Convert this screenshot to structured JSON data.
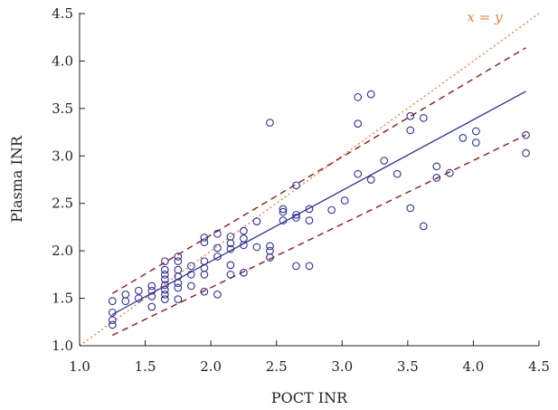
{
  "chart_data": {
    "type": "scatter",
    "title": "",
    "xlabel": "POCT INR",
    "ylabel": "Plasma INR",
    "xlim": [
      1.0,
      4.5
    ],
    "ylim": [
      1.0,
      4.5
    ],
    "xticks": [
      "1.0",
      "1.5",
      "2.0",
      "2.5",
      "3.0",
      "3.5",
      "4.0",
      "4.5"
    ],
    "yticks": [
      "1.0",
      "1.5",
      "2.0",
      "2.5",
      "3.0",
      "3.5",
      "4.0",
      "4.5"
    ],
    "grid": false,
    "annotation": "x = y",
    "colors": {
      "points": "#2e3192",
      "regression": "#2e3192",
      "limits": "#8b1a1a",
      "identity": "#e8823a",
      "axis": "#222222"
    },
    "lines": {
      "identity": {
        "x": [
          1.0,
          4.5
        ],
        "y": [
          1.0,
          4.5
        ]
      },
      "regression": {
        "x": [
          1.25,
          4.4
        ],
        "y": [
          1.33,
          3.68
        ]
      },
      "upper_limit": {
        "x": [
          1.25,
          4.4
        ],
        "y": [
          1.55,
          4.14
        ]
      },
      "lower_limit": {
        "x": [
          1.25,
          4.4
        ],
        "y": [
          1.11,
          3.22
        ]
      }
    },
    "points": [
      [
        1.25,
        1.47
      ],
      [
        1.25,
        1.35
      ],
      [
        1.25,
        1.27
      ],
      [
        1.25,
        1.22
      ],
      [
        1.35,
        1.54
      ],
      [
        1.35,
        1.47
      ],
      [
        1.45,
        1.58
      ],
      [
        1.45,
        1.5
      ],
      [
        1.55,
        1.63
      ],
      [
        1.55,
        1.58
      ],
      [
        1.55,
        1.52
      ],
      [
        1.55,
        1.41
      ],
      [
        1.65,
        1.89
      ],
      [
        1.65,
        1.8
      ],
      [
        1.65,
        1.75
      ],
      [
        1.65,
        1.7
      ],
      [
        1.65,
        1.64
      ],
      [
        1.65,
        1.59
      ],
      [
        1.65,
        1.54
      ],
      [
        1.65,
        1.49
      ],
      [
        1.75,
        1.94
      ],
      [
        1.75,
        1.89
      ],
      [
        1.75,
        1.8
      ],
      [
        1.75,
        1.73
      ],
      [
        1.75,
        1.66
      ],
      [
        1.75,
        1.61
      ],
      [
        1.75,
        1.49
      ],
      [
        1.85,
        1.84
      ],
      [
        1.85,
        1.75
      ],
      [
        1.85,
        1.63
      ],
      [
        1.95,
        2.14
      ],
      [
        1.95,
        2.09
      ],
      [
        1.95,
        1.89
      ],
      [
        1.95,
        1.82
      ],
      [
        1.95,
        1.75
      ],
      [
        1.95,
        1.57
      ],
      [
        2.05,
        2.18
      ],
      [
        2.05,
        2.03
      ],
      [
        2.05,
        1.94
      ],
      [
        2.05,
        1.54
      ],
      [
        2.15,
        2.15
      ],
      [
        2.15,
        2.08
      ],
      [
        2.15,
        2.02
      ],
      [
        2.15,
        1.85
      ],
      [
        2.15,
        1.75
      ],
      [
        2.25,
        2.21
      ],
      [
        2.25,
        2.13
      ],
      [
        2.25,
        2.06
      ],
      [
        2.25,
        1.77
      ],
      [
        2.35,
        2.31
      ],
      [
        2.35,
        2.04
      ],
      [
        2.45,
        3.35
      ],
      [
        2.45,
        2.05
      ],
      [
        2.45,
        2.0
      ],
      [
        2.45,
        1.93
      ],
      [
        2.55,
        2.44
      ],
      [
        2.55,
        2.41
      ],
      [
        2.55,
        2.32
      ],
      [
        2.65,
        2.69
      ],
      [
        2.65,
        2.38
      ],
      [
        2.65,
        2.35
      ],
      [
        2.65,
        1.84
      ],
      [
        2.75,
        2.44
      ],
      [
        2.75,
        2.32
      ],
      [
        2.75,
        1.84
      ],
      [
        2.92,
        2.43
      ],
      [
        3.02,
        2.53
      ],
      [
        3.12,
        3.62
      ],
      [
        3.12,
        3.34
      ],
      [
        3.12,
        2.81
      ],
      [
        3.22,
        3.65
      ],
      [
        3.22,
        2.75
      ],
      [
        3.32,
        2.95
      ],
      [
        3.42,
        2.81
      ],
      [
        3.52,
        3.42
      ],
      [
        3.52,
        3.27
      ],
      [
        3.52,
        2.45
      ],
      [
        3.62,
        3.4
      ],
      [
        3.62,
        2.26
      ],
      [
        3.72,
        2.89
      ],
      [
        3.72,
        2.77
      ],
      [
        3.82,
        2.82
      ],
      [
        3.92,
        3.19
      ],
      [
        4.02,
        3.26
      ],
      [
        4.02,
        3.14
      ],
      [
        4.4,
        3.22
      ],
      [
        4.4,
        3.03
      ]
    ]
  }
}
